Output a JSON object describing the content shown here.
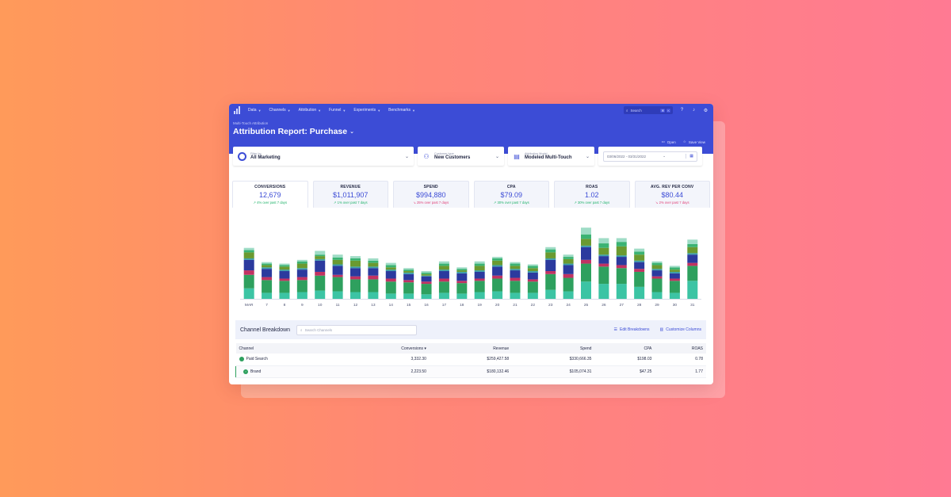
{
  "nav": {
    "items": [
      "Data",
      "Channels",
      "Attribution",
      "Funnel",
      "Experiments",
      "Benchmarks"
    ],
    "search_placeholder": "Search",
    "shortcut": [
      "⌘",
      "K"
    ]
  },
  "header": {
    "breadcrumb": "Multi-Touch Attribution",
    "title": "Attribution Report: Purchase",
    "actions": {
      "open": "Open",
      "save_view": "Save View"
    }
  },
  "filters": {
    "filter_by": {
      "label": "Filter by",
      "value": "All Marketing"
    },
    "customer_type": {
      "label": "Customer type",
      "value": "New Customers"
    },
    "attribution_model": {
      "label": "Attribution Model",
      "value": "Modeled Multi-Touch"
    },
    "date_range": "03/06/2022 - 03/31/2022"
  },
  "metrics": [
    {
      "label": "CONVERSIONS",
      "value": "12,679",
      "change": "4% over past 7 days",
      "direction": "up"
    },
    {
      "label": "REVENUE",
      "value": "$1,011,907",
      "change": "1% over past 7 days",
      "direction": "up"
    },
    {
      "label": "SPEND",
      "value": "$994,880",
      "change": "25% over past 7 days",
      "direction": "down"
    },
    {
      "label": "CPA",
      "value": "$79.09",
      "change": "30% over past 7 days",
      "direction": "up"
    },
    {
      "label": "ROAS",
      "value": "1.02",
      "change": "30% over past 7 days",
      "direction": "up"
    },
    {
      "label": "AVG. REV PER CONV",
      "value": "$80.44",
      "change": "2% over past 7 days",
      "direction": "down"
    }
  ],
  "chart_data": {
    "type": "bar",
    "stacked": true,
    "categories": [
      "MAR",
      "7",
      "8",
      "9",
      "10",
      "11",
      "12",
      "13",
      "14",
      "15",
      "16",
      "17",
      "18",
      "19",
      "20",
      "21",
      "22",
      "23",
      "24",
      "25",
      "26",
      "27",
      "28",
      "29",
      "30",
      "31"
    ],
    "series": [
      {
        "color": "#3cc4a4",
        "values": [
          14,
          8,
          8,
          9,
          11,
          10,
          9,
          9,
          7,
          7,
          6,
          8,
          7,
          9,
          10,
          8,
          8,
          12,
          10,
          23,
          20,
          20,
          16,
          9,
          8,
          24
        ]
      },
      {
        "color": "#2ea05e",
        "values": [
          18,
          17,
          16,
          16,
          20,
          19,
          17,
          17,
          16,
          15,
          14,
          15,
          14,
          15,
          17,
          16,
          15,
          21,
          18,
          24,
          23,
          21,
          20,
          18,
          16,
          20
        ]
      },
      {
        "color": "#c13262",
        "values": [
          6,
          4,
          3,
          4,
          5,
          3,
          4,
          5,
          4,
          3,
          3,
          4,
          3,
          3,
          4,
          4,
          3,
          4,
          5,
          5,
          4,
          4,
          4,
          3,
          3,
          4
        ]
      },
      {
        "color": "#2b3a9e",
        "values": [
          14,
          11,
          10,
          10,
          15,
          12,
          11,
          10,
          10,
          8,
          7,
          10,
          10,
          9,
          12,
          10,
          9,
          15,
          12,
          17,
          10,
          11,
          9,
          8,
          7,
          11
        ]
      },
      {
        "color": "#3a9ea8",
        "values": [
          2,
          2,
          2,
          2,
          2,
          2,
          2,
          2,
          2,
          2,
          1,
          2,
          2,
          2,
          2,
          2,
          2,
          2,
          2,
          2,
          2,
          2,
          2,
          2,
          2,
          2
        ]
      },
      {
        "color": "#6a9a30",
        "values": [
          8,
          3,
          4,
          6,
          4,
          6,
          8,
          5,
          3,
          2,
          2,
          5,
          2,
          6,
          6,
          4,
          4,
          8,
          6,
          9,
          9,
          12,
          8,
          5,
          3,
          8
        ]
      },
      {
        "color": "#3bb373",
        "values": [
          3,
          2,
          2,
          3,
          2,
          3,
          3,
          3,
          3,
          2,
          2,
          3,
          2,
          3,
          3,
          3,
          3,
          4,
          3,
          6,
          6,
          6,
          4,
          3,
          3,
          4
        ]
      },
      {
        "color": "#9fdcc6",
        "values": [
          3,
          2,
          2,
          2,
          5,
          4,
          3,
          3,
          3,
          2,
          2,
          3,
          2,
          3,
          2,
          2,
          2,
          3,
          3,
          9,
          7,
          5,
          4,
          2,
          2,
          6
        ]
      }
    ],
    "ylim": [
      0,
      110
    ],
    "grid": false,
    "legend": "none"
  },
  "breakdown": {
    "title": "Channel Breakdown",
    "search_placeholder": "Search Channels",
    "actions": {
      "edit": "Edit Breakdowns",
      "customize": "Customize Columns"
    },
    "columns": [
      "Channel",
      "Conversions",
      "Revenue",
      "Spend",
      "CPA",
      "ROAS"
    ],
    "rows": [
      {
        "channel": "Paid Search",
        "conversions": "3,332.30",
        "revenue": "$259,427.58",
        "spend": "$330,666.35",
        "cpa": "$198.03",
        "roas": "0.78"
      },
      {
        "channel": "Brand",
        "conversions": "2,223.50",
        "revenue": "$180,132.46",
        "spend": "$105,074.31",
        "cpa": "$47.25",
        "roas": "1.77"
      }
    ]
  }
}
